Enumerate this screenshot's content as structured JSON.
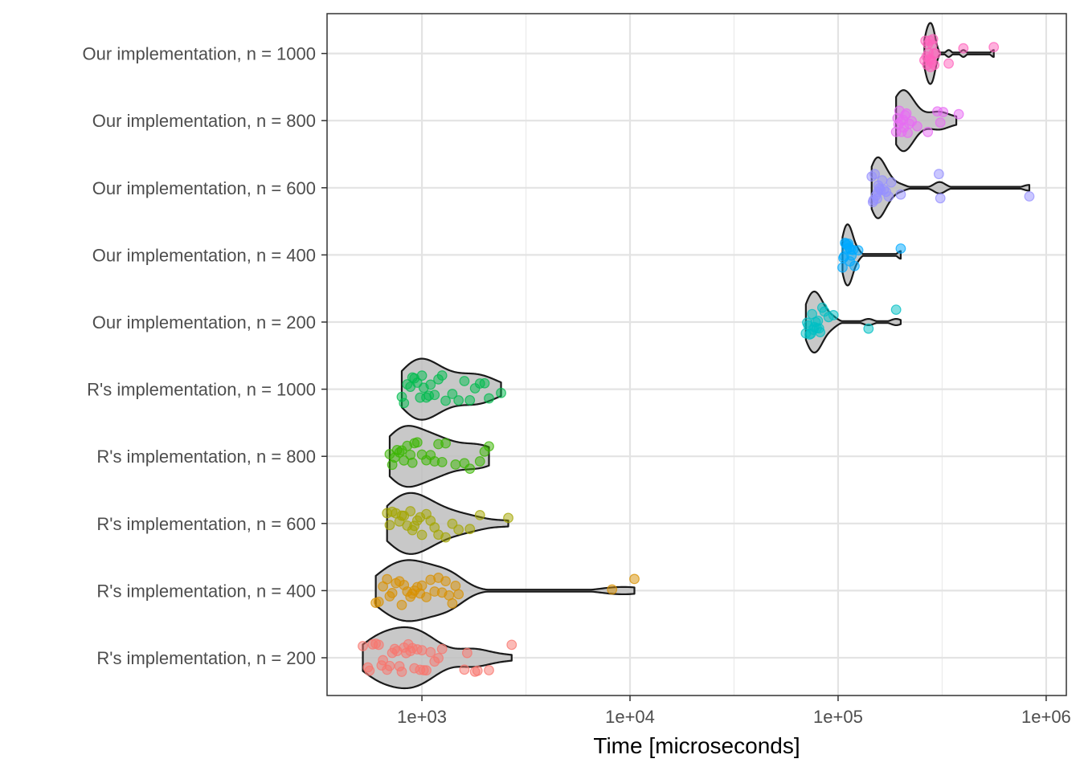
{
  "chart_data": {
    "type": "violin",
    "title": "",
    "xlabel": "Time [microseconds]",
    "ylabel": "",
    "x_scale": "log10",
    "xlim": [
      350,
      1250000
    ],
    "x_ticks": [
      {
        "value": 1000,
        "label": "1e+03"
      },
      {
        "value": 10000,
        "label": "1e+04"
      },
      {
        "value": 100000,
        "label": "1e+05"
      },
      {
        "value": 1000000,
        "label": "1e+06"
      }
    ],
    "grid": true,
    "categories": [
      "R's  implementation, n = 200",
      "R's  implementation, n = 400",
      "R's  implementation, n = 600",
      "R's  implementation, n = 800",
      "R's  implementation, n = 1000",
      "Our implementation, n = 200",
      "Our implementation, n = 400",
      "Our implementation, n = 600",
      "Our implementation, n = 800",
      "Our implementation, n = 1000"
    ],
    "series": [
      {
        "category": "R's  implementation, n = 200",
        "color": "#F8766D",
        "min": 520,
        "median": 780,
        "max": 2700,
        "points": [
          520,
          550,
          560,
          580,
          600,
          620,
          640,
          650,
          680,
          700,
          720,
          740,
          760,
          780,
          800,
          820,
          840,
          860,
          880,
          900,
          920,
          950,
          980,
          1000,
          1020,
          1050,
          1100,
          1150,
          1200,
          1250,
          1600,
          1650,
          1800,
          1850,
          2100,
          2700
        ]
      },
      {
        "category": "R's  implementation, n = 400",
        "color": "#D89000",
        "min": 600,
        "median": 860,
        "max": 10500,
        "points": [
          600,
          620,
          650,
          680,
          700,
          720,
          750,
          780,
          800,
          820,
          850,
          880,
          900,
          920,
          950,
          980,
          1000,
          1050,
          1100,
          1150,
          1200,
          1250,
          1300,
          1350,
          1400,
          1450,
          1500,
          8200,
          10500
        ]
      },
      {
        "category": "R's  implementation, n = 600",
        "color": "#A3A500",
        "min": 680,
        "median": 880,
        "max": 2600,
        "points": [
          680,
          700,
          720,
          750,
          780,
          800,
          820,
          850,
          880,
          900,
          920,
          950,
          980,
          1000,
          1050,
          1100,
          1150,
          1200,
          1300,
          1400,
          1500,
          1700,
          1900,
          2600
        ]
      },
      {
        "category": "R's  implementation, n = 800",
        "color": "#39B600",
        "min": 700,
        "median": 960,
        "max": 2100,
        "points": [
          700,
          720,
          740,
          760,
          780,
          800,
          820,
          850,
          880,
          900,
          920,
          950,
          1000,
          1050,
          1100,
          1150,
          1200,
          1250,
          1300,
          1450,
          1600,
          1700,
          1900,
          2000,
          2100
        ]
      },
      {
        "category": "R's  implementation, n = 1000",
        "color": "#00BB4E",
        "min": 800,
        "median": 1050,
        "max": 2400,
        "points": [
          800,
          820,
          850,
          880,
          900,
          920,
          950,
          980,
          1000,
          1020,
          1050,
          1080,
          1100,
          1150,
          1200,
          1250,
          1300,
          1400,
          1500,
          1600,
          1700,
          1800,
          1900,
          2000,
          2100,
          2400
        ]
      },
      {
        "category": "Our implementation, n = 200",
        "color": "#00BFC4",
        "min": 70000,
        "median": 76000,
        "max": 200000,
        "points": [
          70000,
          71000,
          72000,
          73000,
          74000,
          75000,
          76000,
          77000,
          78000,
          79000,
          80000,
          81000,
          82000,
          84000,
          86000,
          90000,
          95000,
          140000,
          190000
        ]
      },
      {
        "category": "Our implementation, n = 400",
        "color": "#00A9FF",
        "min": 105000,
        "median": 112000,
        "max": 200000,
        "points": [
          105000,
          106000,
          107000,
          108000,
          109000,
          110000,
          111000,
          112000,
          113000,
          114000,
          115000,
          116000,
          118000,
          120000,
          125000,
          200000
        ]
      },
      {
        "category": "Our implementation, n = 600",
        "color": "#9590FF",
        "min": 145000,
        "median": 155000,
        "max": 830000,
        "points": [
          145000,
          147000,
          148000,
          150000,
          152000,
          154000,
          155000,
          156000,
          158000,
          160000,
          163000,
          166000,
          170000,
          175000,
          180000,
          200000,
          305000,
          310000,
          830000
        ]
      },
      {
        "category": "Our implementation, n = 800",
        "color": "#E76BF3",
        "min": 190000,
        "median": 205000,
        "max": 370000,
        "points": [
          190000,
          193000,
          195000,
          197000,
          200000,
          202000,
          205000,
          207000,
          210000,
          213000,
          216000,
          220000,
          226000,
          240000,
          270000,
          300000,
          310000,
          320000,
          380000
        ]
      },
      {
        "category": "Our implementation, n = 1000",
        "color": "#FF62BC",
        "min": 260000,
        "median": 278000,
        "max": 560000,
        "points": [
          260000,
          263000,
          266000,
          268000,
          270000,
          272000,
          274000,
          276000,
          278000,
          280000,
          282000,
          284000,
          286000,
          288000,
          290000,
          295000,
          340000,
          400000,
          560000
        ]
      }
    ]
  }
}
